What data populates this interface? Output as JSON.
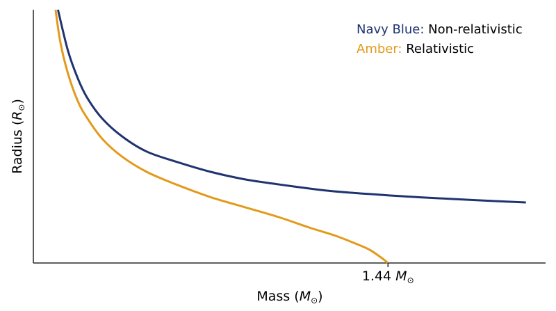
{
  "chart_data": {
    "type": "line",
    "title": "",
    "xlabel": {
      "prefix": "Mass (",
      "sym": "M",
      "sub": "⊙",
      "suffix": ")"
    },
    "ylabel": {
      "prefix": "Radius (",
      "sym": "R",
      "sub": "⊙",
      "suffix": ")"
    },
    "xlim": [
      0,
      2.08
    ],
    "ylim": [
      0,
      1
    ],
    "x_ticks": [
      {
        "value": 1.44,
        "text": "1.44",
        "sym": "M",
        "sub": "⊙"
      }
    ],
    "y_ticks": [],
    "grid": false,
    "legend": {
      "placement": "top-right",
      "items": [
        {
          "key": "Navy Blue:",
          "text": "Non-relativistic",
          "color": "#1f3370"
        },
        {
          "key": "Amber:",
          "text": "Relativistic",
          "color": "#e39a1a"
        }
      ]
    },
    "series": [
      {
        "color": "#1f3370",
        "x": [
          0.1,
          0.14,
          0.18,
          0.22,
          0.28,
          0.36,
          0.46,
          0.58,
          0.72,
          0.86,
          1.0,
          1.2,
          1.4,
          1.6,
          1.8,
          2.0
        ],
        "y": [
          1.0,
          0.84,
          0.73,
          0.65,
          0.57,
          0.5,
          0.44,
          0.4,
          0.36,
          0.33,
          0.31,
          0.285,
          0.27,
          0.258,
          0.248,
          0.239
        ]
      },
      {
        "color": "#e39a1a",
        "x": [
          0.09,
          0.11,
          0.14,
          0.18,
          0.22,
          0.28,
          0.36,
          0.46,
          0.58,
          0.72,
          0.86,
          1.0,
          1.12,
          1.22,
          1.3,
          1.36,
          1.4,
          1.425,
          1.44
        ],
        "y": [
          1.0,
          0.87,
          0.75,
          0.64,
          0.57,
          0.49,
          0.42,
          0.36,
          0.31,
          0.26,
          0.22,
          0.18,
          0.14,
          0.11,
          0.08,
          0.055,
          0.03,
          0.012,
          0.0
        ]
      }
    ]
  }
}
